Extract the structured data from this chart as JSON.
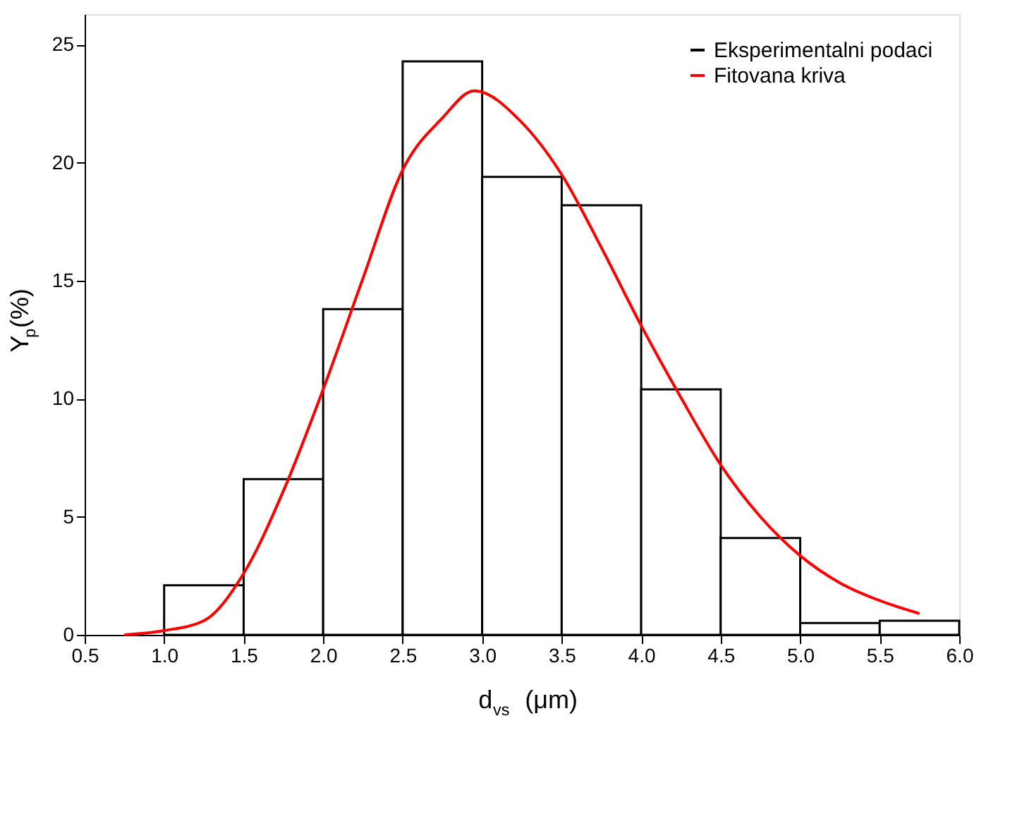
{
  "chart_data": {
    "type": "histogram",
    "xlabel": "d$_{vs}$ (μm)",
    "ylabel": "Y$_{p}$(%)",
    "bins": [
      1.0,
      1.5,
      2.0,
      2.5,
      3.0,
      3.5,
      4.0,
      4.5,
      5.0,
      5.5,
      6.0
    ],
    "series": [
      {
        "name": "Eksperimentalni podaci",
        "color": "#000000",
        "values": [
          2.1,
          6.6,
          13.8,
          24.3,
          19.4,
          18.2,
          10.4,
          4.1,
          0.5,
          0.6
        ]
      },
      {
        "name": "Fitovana kriva",
        "type": "line",
        "color": "#ff0000",
        "x": [
          0.75,
          1.0,
          1.25,
          1.5,
          1.75,
          2.0,
          2.25,
          2.5,
          2.75,
          2.95,
          3.25,
          3.5,
          3.75,
          4.0,
          4.25,
          4.5,
          4.75,
          5.0,
          5.25,
          5.5,
          5.75
        ],
        "values": [
          0,
          0.18,
          0.6,
          2.6,
          6.1,
          10.4,
          15.1,
          19.7,
          21.9,
          23.05,
          21.7,
          19.5,
          16.4,
          13.1,
          10.05,
          7.2,
          5.0,
          3.35,
          2.2,
          1.45,
          0.9
        ]
      }
    ],
    "xlim": [
      0.5,
      6.0
    ],
    "xticks": [
      {
        "value": 0.5,
        "label": "0.5"
      },
      {
        "value": 1,
        "label": "1.0"
      },
      {
        "value": 1.5,
        "label": "1.5"
      },
      {
        "value": 2,
        "label": "2.0"
      },
      {
        "value": 2.5,
        "label": "2.5"
      },
      {
        "value": 3,
        "label": "3.0"
      },
      {
        "value": 3.5,
        "label": "3.5"
      },
      {
        "value": 4,
        "label": "4.0"
      },
      {
        "value": 4.5,
        "label": "4.5"
      },
      {
        "value": 5,
        "label": "5.0"
      },
      {
        "value": 5.5,
        "label": "5.5"
      },
      {
        "value": 6,
        "label": "6.0"
      }
    ],
    "ylim": [
      0,
      26.3
    ],
    "yticks": [
      0,
      5,
      10,
      15,
      20,
      25
    ],
    "legend": "top right",
    "grid": false,
    "line_style": "solid",
    "marker": "none"
  }
}
